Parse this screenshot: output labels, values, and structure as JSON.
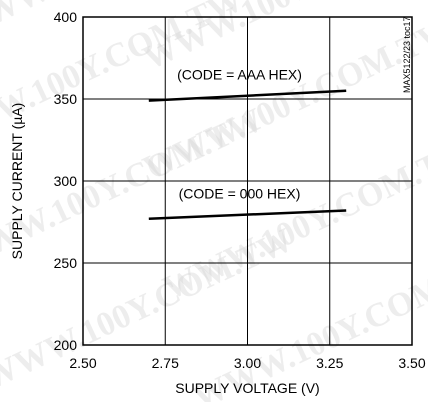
{
  "chart_data": {
    "type": "line",
    "xlabel": "SUPPLY VOLTAGE (V)",
    "ylabel": "SUPPLY CURRENT (µA)",
    "xlim": [
      2.5,
      3.5
    ],
    "ylim": [
      200,
      400
    ],
    "xticks": [
      2.5,
      2.75,
      3.0,
      3.25,
      3.5
    ],
    "xtick_labels": [
      "2.50",
      "2.75",
      "3.00",
      "3.25",
      "3.50"
    ],
    "yticks": [
      200,
      250,
      300,
      350,
      400
    ],
    "ytick_labels": [
      "200",
      "250",
      "300",
      "350",
      "400"
    ],
    "grid": true,
    "series": [
      {
        "x": [
          2.7,
          3.3
        ],
        "y": [
          349,
          355
        ],
        "annotation": "(CODE = AAA HEX)"
      },
      {
        "x": [
          2.7,
          3.3
        ],
        "y": [
          277,
          282
        ],
        "annotation": "(CODE = 000 HEX)"
      }
    ],
    "side_label": "MAX5122/23 toc17",
    "watermark_text": "WWW.100Y.COM.TW"
  }
}
